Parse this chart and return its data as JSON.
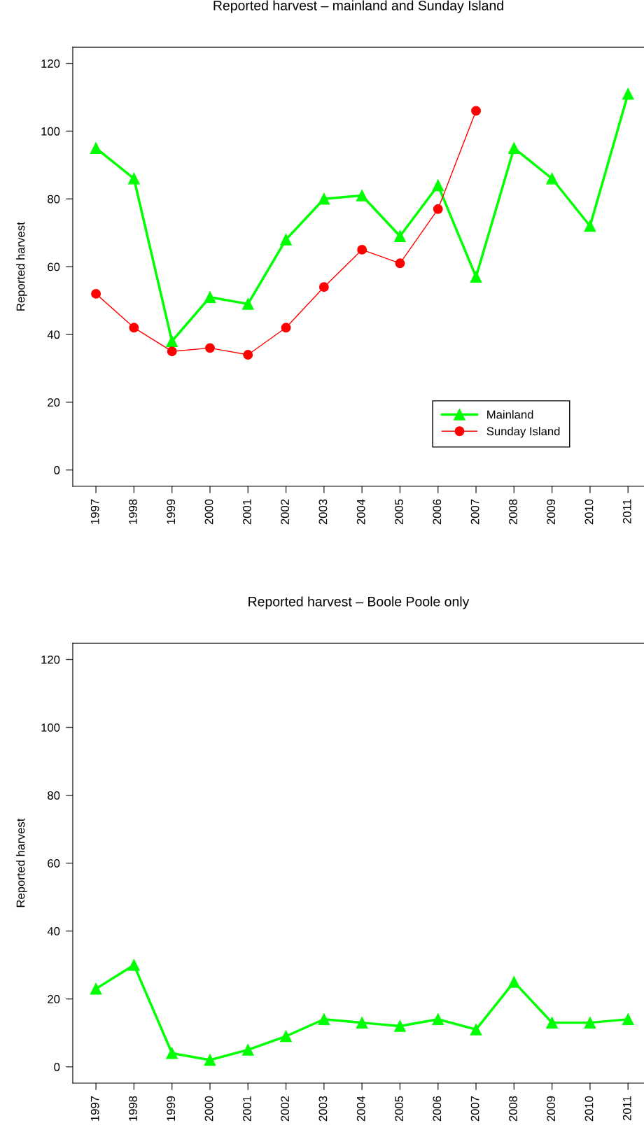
{
  "chart_data": [
    {
      "type": "line",
      "title": "Reported harvest – mainland and Sunday Island",
      "ylabel": "Reported harvest",
      "categories": [
        "1997",
        "1998",
        "1999",
        "2000",
        "2001",
        "2002",
        "2003",
        "2004",
        "2005",
        "2006",
        "2007",
        "2008",
        "2009",
        "2010",
        "2011"
      ],
      "series": [
        {
          "name": "Mainland",
          "color": "#00ff00",
          "marker": "triangle",
          "values": [
            95,
            86,
            38,
            51,
            49,
            68,
            80,
            81,
            69,
            84,
            57,
            95,
            86,
            72,
            111
          ]
        },
        {
          "name": "Sunday Island",
          "color": "#ff0000",
          "marker": "circle",
          "values": [
            52,
            42,
            35,
            36,
            34,
            42,
            54,
            65,
            61,
            77,
            106,
            null,
            null,
            null,
            null
          ]
        }
      ],
      "ylim": [
        -4.8,
        124.8
      ],
      "yticks": [
        0,
        20,
        40,
        60,
        80,
        100,
        120
      ],
      "grid": false,
      "legend": "bottom right",
      "line_style": "solid"
    },
    {
      "type": "line",
      "title": "Reported harvest – Boole Poole only",
      "ylabel": "Reported harvest",
      "categories": [
        "1997",
        "1998",
        "1999",
        "2000",
        "2001",
        "2002",
        "2003",
        "2004",
        "2005",
        "2006",
        "2007",
        "2008",
        "2009",
        "2010",
        "2011"
      ],
      "series": [
        {
          "color": "#00ff00",
          "marker": "triangle",
          "values": [
            23,
            30,
            4,
            2,
            5,
            9,
            14,
            13,
            12,
            14,
            11,
            25,
            13,
            13,
            14
          ]
        }
      ],
      "ylim": [
        -4.8,
        124.8
      ],
      "yticks": [
        0,
        20,
        40,
        60,
        80,
        100,
        120
      ],
      "grid": false,
      "legend": false,
      "line_style": "solid"
    }
  ]
}
